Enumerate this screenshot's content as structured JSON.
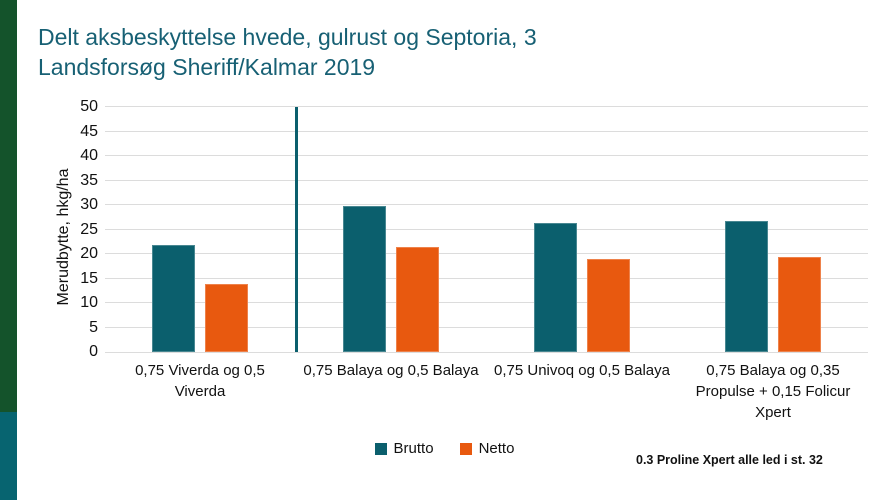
{
  "title": "Delt aksbeskyttelse hvede, gulrust og Septoria, 3\nLandsforsøg Sheriff/Kalmar 2019",
  "note": "0.3 Proline Xpert alle led i st. 32",
  "colors": {
    "title_text": "#176074",
    "sidebar_green": "#14532B",
    "sidebar_teal": "#076470",
    "gridline": "#DCDCDC",
    "divider": "#0B5F6D",
    "brutto": "#0B5F6D",
    "netto": "#E8590F"
  },
  "chart_data": {
    "type": "bar",
    "title": "Delt aksbeskyttelse hvede, gulrust og Septoria, 3 Landsforsøg Sheriff/Kalmar 2019",
    "xlabel": "",
    "ylabel": "Merudbytte, hkg/ha",
    "ylim": [
      0,
      50
    ],
    "y_ticks": [
      0,
      5,
      10,
      15,
      20,
      25,
      30,
      35,
      40,
      45,
      50
    ],
    "grid": true,
    "legend_position": "bottom",
    "categories": [
      "0,75 Viverda og 0,5 Viverda",
      "0,75 Balaya og 0,5 Balaya",
      "0,75 Univoq og 0,5 Balaya",
      "0,75 Balaya og 0,35 Propulse + 0,15 Folicur Xpert"
    ],
    "series": [
      {
        "name": "Brutto",
        "color": "#0B5F6D",
        "values": [
          21.8,
          29.7,
          26.4,
          26.8
        ]
      },
      {
        "name": "Netto",
        "color": "#E8590F",
        "values": [
          13.8,
          21.5,
          19.0,
          19.4
        ]
      }
    ],
    "divider_after_category_index": 0
  }
}
